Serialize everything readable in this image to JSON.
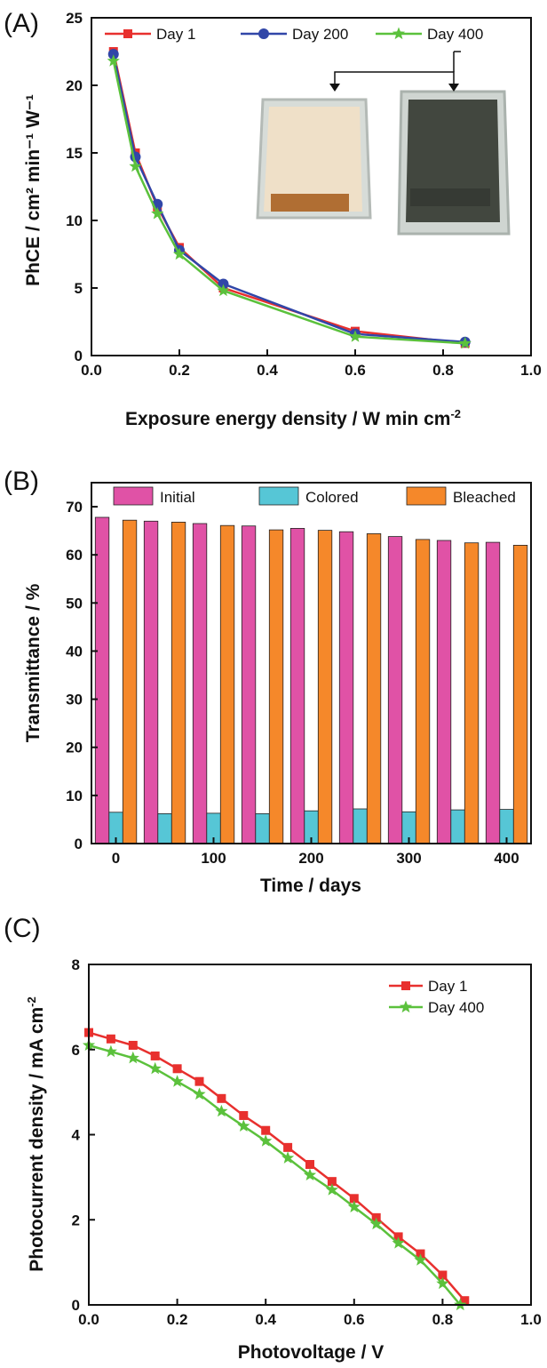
{
  "chart_data": [
    {
      "panel_label": "(A)",
      "type": "line",
      "xlabel": "Exposure energy density / W min cm",
      "xlabel_sup": "-2",
      "ylabel": "PhCE / cm² min⁻¹ W⁻¹",
      "xlim": [
        0.0,
        1.0
      ],
      "ylim": [
        0,
        25
      ],
      "x_ticks": [
        "0.0",
        "0.2",
        "0.4",
        "0.6",
        "0.8",
        "1.0"
      ],
      "y_ticks": [
        "0",
        "5",
        "10",
        "15",
        "20",
        "25"
      ],
      "x": [
        0.05,
        0.1,
        0.15,
        0.2,
        0.3,
        0.6,
        0.85
      ],
      "series": [
        {
          "name": "Day 1",
          "color": "#e8302e",
          "marker": "square",
          "values": [
            22.5,
            15.0,
            11.0,
            8.0,
            5.0,
            1.8,
            0.9
          ]
        },
        {
          "name": "Day 200",
          "color": "#3146a8",
          "marker": "circle",
          "values": [
            22.3,
            14.7,
            11.2,
            7.8,
            5.3,
            1.6,
            1.0
          ]
        },
        {
          "name": "Day 400",
          "color": "#5bc13c",
          "marker": "star",
          "values": [
            21.8,
            14.0,
            10.5,
            7.5,
            4.8,
            1.4,
            0.9
          ]
        }
      ],
      "legend": "top",
      "inset": "photos of colored and bleached device",
      "grid": false
    },
    {
      "panel_label": "(B)",
      "type": "bar",
      "xlabel": "Time / days",
      "ylabel": "Transmittance / %",
      "xlim": [
        -25,
        425
      ],
      "ylim": [
        0,
        75
      ],
      "x_ticks": [
        "0",
        "100",
        "200",
        "300",
        "400"
      ],
      "y_ticks": [
        "0",
        "10",
        "20",
        "30",
        "40",
        "50",
        "60",
        "70"
      ],
      "x": [
        0,
        50,
        100,
        150,
        200,
        250,
        300,
        350,
        400
      ],
      "series": [
        {
          "name": "Initial",
          "color": "#e052a6",
          "values": [
            67.8,
            67.0,
            66.5,
            66.0,
            65.5,
            64.8,
            63.8,
            63.0,
            62.6
          ]
        },
        {
          "name": "Colored",
          "color": "#56c6d6",
          "values": [
            6.5,
            6.2,
            6.3,
            6.2,
            6.8,
            7.2,
            6.6,
            7.0,
            7.1
          ]
        },
        {
          "name": "Bleached",
          "color": "#f5882a",
          "values": [
            67.2,
            66.8,
            66.1,
            65.2,
            65.1,
            64.4,
            63.2,
            62.5,
            62.0
          ]
        }
      ],
      "legend": "top",
      "grid": false
    },
    {
      "panel_label": "(C)",
      "type": "line",
      "xlabel": "Photovoltage / V",
      "ylabel": "Photocurrent density / mA cm",
      "ylabel_sup": "-2",
      "xlim": [
        0.0,
        1.0
      ],
      "ylim": [
        0,
        8
      ],
      "x_ticks": [
        "0.0",
        "0.2",
        "0.4",
        "0.6",
        "0.8",
        "1.0"
      ],
      "y_ticks": [
        "0",
        "2",
        "4",
        "6",
        "8"
      ],
      "series": [
        {
          "name": "Day 1",
          "color": "#e8302e",
          "marker": "square",
          "x": [
            0.0,
            0.05,
            0.1,
            0.15,
            0.2,
            0.25,
            0.3,
            0.35,
            0.4,
            0.45,
            0.5,
            0.55,
            0.6,
            0.65,
            0.7,
            0.75,
            0.8,
            0.85
          ],
          "values": [
            6.4,
            6.25,
            6.1,
            5.85,
            5.55,
            5.25,
            4.85,
            4.45,
            4.1,
            3.7,
            3.3,
            2.9,
            2.5,
            2.05,
            1.6,
            1.2,
            0.7,
            0.1
          ]
        },
        {
          "name": "Day 400",
          "color": "#5bc13c",
          "marker": "star",
          "x": [
            0.0,
            0.05,
            0.1,
            0.15,
            0.2,
            0.25,
            0.3,
            0.35,
            0.4,
            0.45,
            0.5,
            0.55,
            0.6,
            0.65,
            0.7,
            0.75,
            0.8,
            0.84
          ],
          "values": [
            6.1,
            5.95,
            5.8,
            5.55,
            5.25,
            4.95,
            4.55,
            4.2,
            3.85,
            3.45,
            3.05,
            2.7,
            2.3,
            1.9,
            1.45,
            1.05,
            0.5,
            0.0
          ]
        }
      ],
      "legend": "top-right",
      "grid": false
    }
  ]
}
